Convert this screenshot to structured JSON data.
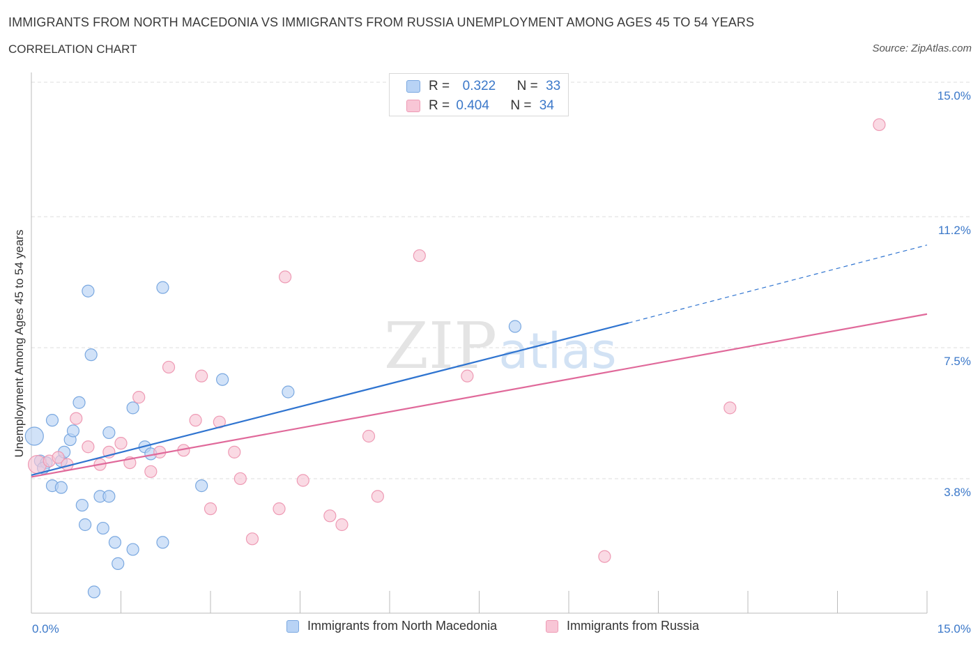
{
  "title": "IMMIGRANTS FROM NORTH MACEDONIA VS IMMIGRANTS FROM RUSSIA UNEMPLOYMENT AMONG AGES 45 TO 54 YEARS",
  "subtitle": "CORRELATION CHART",
  "source": "Source: ZipAtlas.com",
  "colors": {
    "blue_fill": "#b8d3f5",
    "blue_stroke": "#7aa8e0",
    "blue_line": "#2f74d0",
    "pink_fill": "#f8c6d6",
    "pink_stroke": "#ee9ab4",
    "pink_line": "#e0699a",
    "axis_label": "#3b78c9",
    "grid": "#dddddd"
  },
  "legend_top": {
    "rows": [
      {
        "r_label": "R =",
        "r_value": "0.322",
        "n_label": "N =",
        "n_value": "33"
      },
      {
        "r_label": "R =",
        "r_value": "0.404",
        "n_label": "N =",
        "n_value": "34"
      }
    ]
  },
  "legend_bottom": {
    "series1": "Immigrants from North Macedonia",
    "series2": "Immigrants from Russia"
  },
  "chart_data": {
    "type": "scatter",
    "title": "IMMIGRANTS FROM NORTH MACEDONIA VS IMMIGRANTS FROM RUSSIA UNEMPLOYMENT AMONG AGES 45 TO 54 YEARS",
    "xlabel": "",
    "ylabel": "Unemployment Among Ages 45 to 54 years",
    "xlim": [
      0,
      15
    ],
    "ylim": [
      0,
      15
    ],
    "x_tick_labels": [
      "0.0%",
      "15.0%"
    ],
    "y_ticks": [
      {
        "value": 3.8,
        "label": "3.8%"
      },
      {
        "value": 7.5,
        "label": "7.5%"
      },
      {
        "value": 11.2,
        "label": "11.2%"
      },
      {
        "value": 15.0,
        "label": "15.0%"
      }
    ],
    "watermark": [
      "ZIP",
      "atlas"
    ],
    "series": [
      {
        "name": "Immigrants from North Macedonia",
        "R": 0.322,
        "N": 33,
        "trend": {
          "x0": 0,
          "y0": 3.9,
          "x1": 10.0,
          "y1": 8.2,
          "dash_x1": 15.0,
          "dash_y1": 10.4
        },
        "points": [
          {
            "x": 0.05,
            "y": 5.0,
            "size": "large"
          },
          {
            "x": 0.15,
            "y": 4.3
          },
          {
            "x": 0.25,
            "y": 4.25
          },
          {
            "x": 0.2,
            "y": 4.1
          },
          {
            "x": 0.35,
            "y": 3.6
          },
          {
            "x": 0.35,
            "y": 5.45
          },
          {
            "x": 0.5,
            "y": 3.55
          },
          {
            "x": 0.5,
            "y": 4.3
          },
          {
            "x": 0.55,
            "y": 4.55
          },
          {
            "x": 0.65,
            "y": 4.9
          },
          {
            "x": 0.7,
            "y": 5.15
          },
          {
            "x": 0.8,
            "y": 5.95
          },
          {
            "x": 0.85,
            "y": 3.05
          },
          {
            "x": 0.9,
            "y": 2.5
          },
          {
            "x": 0.95,
            "y": 9.1
          },
          {
            "x": 1.0,
            "y": 7.3
          },
          {
            "x": 1.05,
            "y": 0.6
          },
          {
            "x": 1.15,
            "y": 3.3
          },
          {
            "x": 1.2,
            "y": 2.4
          },
          {
            "x": 1.3,
            "y": 3.3
          },
          {
            "x": 1.3,
            "y": 5.1
          },
          {
            "x": 1.4,
            "y": 2.0
          },
          {
            "x": 1.45,
            "y": 1.4
          },
          {
            "x": 1.7,
            "y": 1.8
          },
          {
            "x": 1.7,
            "y": 5.8
          },
          {
            "x": 1.9,
            "y": 4.7
          },
          {
            "x": 2.0,
            "y": 4.5
          },
          {
            "x": 2.2,
            "y": 9.2
          },
          {
            "x": 2.2,
            "y": 2.0
          },
          {
            "x": 2.85,
            "y": 3.6
          },
          {
            "x": 3.2,
            "y": 6.6
          },
          {
            "x": 4.3,
            "y": 6.25
          },
          {
            "x": 8.1,
            "y": 8.1
          }
        ]
      },
      {
        "name": "Immigrants from Russia",
        "R": 0.404,
        "N": 34,
        "trend": {
          "x0": 0,
          "y0": 3.85,
          "x1": 15.0,
          "y1": 8.45
        },
        "points": [
          {
            "x": 0.1,
            "y": 4.2,
            "size": "large"
          },
          {
            "x": 0.3,
            "y": 4.3
          },
          {
            "x": 0.45,
            "y": 4.4
          },
          {
            "x": 0.6,
            "y": 4.2
          },
          {
            "x": 0.75,
            "y": 5.5
          },
          {
            "x": 0.95,
            "y": 4.7
          },
          {
            "x": 1.15,
            "y": 4.2
          },
          {
            "x": 1.3,
            "y": 4.55
          },
          {
            "x": 1.5,
            "y": 4.8
          },
          {
            "x": 1.65,
            "y": 4.25
          },
          {
            "x": 1.8,
            "y": 6.1
          },
          {
            "x": 2.0,
            "y": 4.0
          },
          {
            "x": 2.15,
            "y": 4.55
          },
          {
            "x": 2.3,
            "y": 6.95
          },
          {
            "x": 2.55,
            "y": 4.6
          },
          {
            "x": 2.75,
            "y": 5.45
          },
          {
            "x": 2.85,
            "y": 6.7
          },
          {
            "x": 3.0,
            "y": 2.95
          },
          {
            "x": 3.15,
            "y": 5.4
          },
          {
            "x": 3.4,
            "y": 4.55
          },
          {
            "x": 3.5,
            "y": 3.8
          },
          {
            "x": 3.7,
            "y": 2.1
          },
          {
            "x": 4.15,
            "y": 2.95
          },
          {
            "x": 4.25,
            "y": 9.5
          },
          {
            "x": 4.55,
            "y": 3.75
          },
          {
            "x": 5.0,
            "y": 2.75
          },
          {
            "x": 5.2,
            "y": 2.5
          },
          {
            "x": 5.65,
            "y": 5.0
          },
          {
            "x": 5.8,
            "y": 3.3
          },
          {
            "x": 6.5,
            "y": 10.1
          },
          {
            "x": 7.3,
            "y": 6.7
          },
          {
            "x": 9.6,
            "y": 1.6
          },
          {
            "x": 11.7,
            "y": 5.8
          },
          {
            "x": 14.2,
            "y": 13.8
          }
        ]
      }
    ]
  }
}
